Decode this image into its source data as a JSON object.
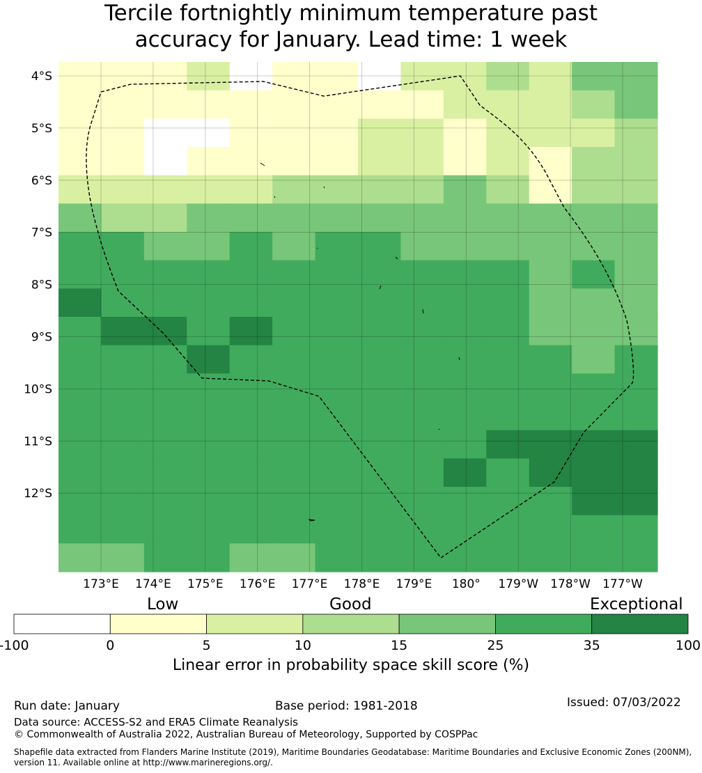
{
  "title": {
    "line1": "Tercile fortnightly minimum temperature past",
    "line2": "accuracy for January. Lead time: 1 week"
  },
  "map": {
    "lat_labels": [
      "4°S",
      "5°S",
      "6°S",
      "7°S",
      "8°S",
      "9°S",
      "10°S",
      "11°S",
      "12°S"
    ],
    "lon_labels": [
      "173°E",
      "174°E",
      "175°E",
      "176°E",
      "177°E",
      "178°E",
      "179°E",
      "180°",
      "179°W",
      "178°W",
      "177°W"
    ],
    "grid_columns": 14,
    "grid_rows": 18,
    "skill_grid": [
      [
        "1",
        "1",
        "1",
        "2",
        "0",
        "1",
        "1",
        "0",
        "2",
        "2",
        "3",
        "2",
        "4",
        "4"
      ],
      [
        "1",
        "1",
        "1",
        "1",
        "1",
        "1",
        "1",
        "1",
        "1",
        "2",
        "2",
        "2",
        "3",
        "4"
      ],
      [
        "1",
        "1",
        "0",
        "0",
        "1",
        "1",
        "1",
        "2",
        "2",
        "1",
        "2",
        "2",
        "2",
        "3"
      ],
      [
        "1",
        "1",
        "0",
        "1",
        "1",
        "1",
        "1",
        "2",
        "2",
        "1",
        "2",
        "1",
        "3",
        "3"
      ],
      [
        "2",
        "2",
        "2",
        "2",
        "2",
        "3",
        "3",
        "3",
        "3",
        "4",
        "3",
        "1",
        "3",
        "3"
      ],
      [
        "4",
        "3",
        "3",
        "4",
        "4",
        "4",
        "4",
        "4",
        "4",
        "4",
        "4",
        "4",
        "4",
        "4"
      ],
      [
        "5",
        "5",
        "4",
        "4",
        "5",
        "4",
        "5",
        "5",
        "4",
        "4",
        "4",
        "4",
        "4",
        "4"
      ],
      [
        "5",
        "5",
        "5",
        "5",
        "5",
        "5",
        "5",
        "5",
        "5",
        "5",
        "5",
        "4",
        "5",
        "4"
      ],
      [
        "6",
        "5",
        "5",
        "5",
        "5",
        "5",
        "5",
        "5",
        "5",
        "5",
        "5",
        "4",
        "4",
        "4"
      ],
      [
        "5",
        "6",
        "6",
        "5",
        "6",
        "5",
        "5",
        "5",
        "5",
        "5",
        "5",
        "4",
        "4",
        "4"
      ],
      [
        "5",
        "5",
        "5",
        "6",
        "5",
        "5",
        "5",
        "5",
        "5",
        "5",
        "5",
        "5",
        "4",
        "5"
      ],
      [
        "5",
        "5",
        "5",
        "5",
        "5",
        "5",
        "5",
        "5",
        "5",
        "5",
        "5",
        "5",
        "5",
        "5"
      ],
      [
        "5",
        "5",
        "5",
        "5",
        "5",
        "5",
        "5",
        "5",
        "5",
        "5",
        "5",
        "5",
        "5",
        "5"
      ],
      [
        "5",
        "5",
        "5",
        "5",
        "5",
        "5",
        "5",
        "5",
        "5",
        "5",
        "6",
        "6",
        "6",
        "6"
      ],
      [
        "5",
        "5",
        "5",
        "5",
        "5",
        "5",
        "5",
        "5",
        "5",
        "6",
        "5",
        "6",
        "6",
        "6"
      ],
      [
        "5",
        "5",
        "5",
        "5",
        "5",
        "5",
        "5",
        "5",
        "5",
        "5",
        "5",
        "5",
        "6",
        "6"
      ],
      [
        "5",
        "5",
        "5",
        "5",
        "5",
        "5",
        "5",
        "5",
        "5",
        "5",
        "5",
        "5",
        "5",
        "5"
      ],
      [
        "4",
        "4",
        "5",
        "5",
        "4",
        "4",
        "5",
        "5",
        "5",
        "5",
        "5",
        "5",
        "5",
        "5"
      ]
    ]
  },
  "legend": {
    "categories": [
      "Low",
      "Good",
      "Exceptional"
    ],
    "ticks": [
      "-100",
      "0",
      "5",
      "10",
      "15",
      "25",
      "35",
      "100"
    ],
    "colors": [
      "#ffffff",
      "#ffffcc",
      "#d9f0a3",
      "#addd8e",
      "#78c679",
      "#41ab5d",
      "#238443"
    ],
    "label": "Linear error in probability space skill score (%)"
  },
  "footer": {
    "run_date": "Run date: January",
    "base_period": "Base period: 1981-2018",
    "issued": "Issued: 07/03/2022",
    "data_source": "Data source: ACCESS-S2 and ERA5 Climate Reanalysis",
    "copyright": "© Commonwealth of Australia 2022, Australian Bureau of Meteorology, Supported by COSPPac",
    "shapefile": "Shapefile data extracted from Flanders Marine Institute (2019), Maritime Boundaries Geodatabase: Maritime Boundaries and Exclusive Economic Zones (200NM), version 11. Available online at http://www.marineregions.org/."
  }
}
